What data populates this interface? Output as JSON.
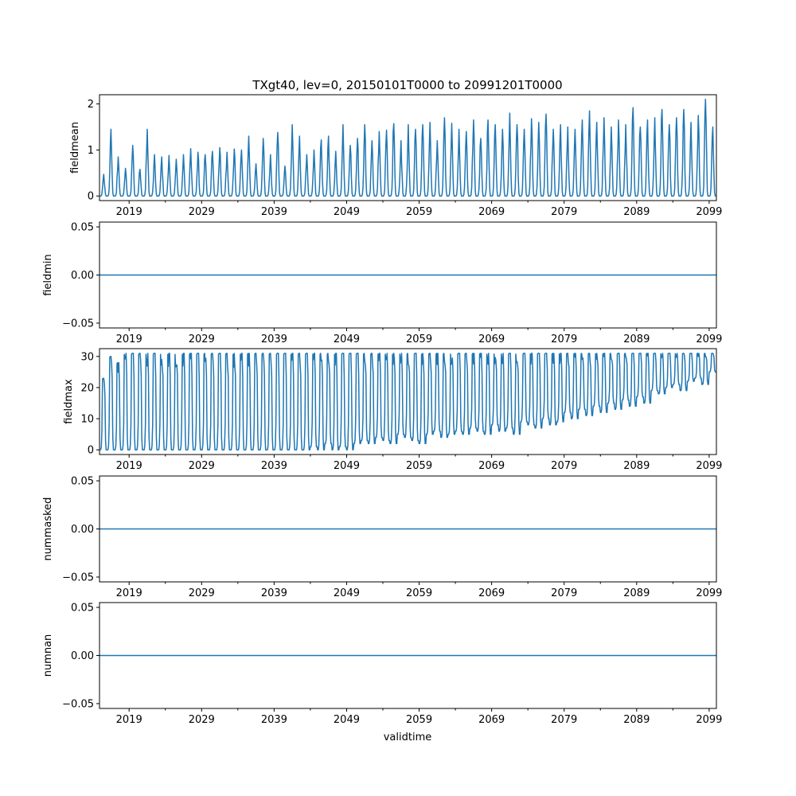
{
  "title": "TXgt40, lev=0, 20150101T0000 to 20991201T0000",
  "xlabel": "validtime",
  "colors": {
    "line": "#1f77b4",
    "axes": "#000000",
    "background": "#ffffff"
  },
  "x_ticks": [
    "2019",
    "2029",
    "2039",
    "2049",
    "2059",
    "2069",
    "2079",
    "2089",
    "2099"
  ],
  "x_range": [
    "2014-12-01",
    "2099-12-31"
  ],
  "chart_data": [
    {
      "type": "line",
      "name": "fieldmean",
      "ylabel": "fieldmean",
      "ylim": [
        -0.1,
        2.2
      ],
      "yticks": [
        "0",
        "1",
        "2"
      ],
      "ytick_values": [
        0,
        1,
        2
      ],
      "x_start": "2015-01",
      "x_end": "2099-12",
      "sampling": "monthly",
      "grid": false,
      "yearly_peaks": [
        0.47,
        1.45,
        0.85,
        0.6,
        1.1,
        0.58,
        1.45,
        0.9,
        0.85,
        0.88,
        0.8,
        0.9,
        1.03,
        0.95,
        0.9,
        0.97,
        1.05,
        0.95,
        1.02,
        1.0,
        1.3,
        0.7,
        1.25,
        0.9,
        1.38,
        0.65,
        1.55,
        1.3,
        0.9,
        1.0,
        1.22,
        1.3,
        0.97,
        1.55,
        1.1,
        1.25,
        1.55,
        1.2,
        1.4,
        1.43,
        1.57,
        1.2,
        1.55,
        1.45,
        1.55,
        1.6,
        1.2,
        1.7,
        1.58,
        1.45,
        1.4,
        1.65,
        1.25,
        1.65,
        1.55,
        1.45,
        1.8,
        1.55,
        1.45,
        1.68,
        1.6,
        1.78,
        1.45,
        1.55,
        1.5,
        1.45,
        1.65,
        1.85,
        1.6,
        1.7,
        1.5,
        1.65,
        1.55,
        1.92,
        1.5,
        1.65,
        1.7,
        1.88,
        1.55,
        1.7,
        1.88,
        1.6,
        1.75,
        2.1,
        1.5
      ]
    },
    {
      "type": "line",
      "name": "fieldmin",
      "ylabel": "fieldmin",
      "ylim": [
        -0.055,
        0.055
      ],
      "yticks": [
        "−0.05",
        "0.00",
        "0.05"
      ],
      "ytick_values": [
        -0.05,
        0,
        0.05
      ],
      "x_start": "2015-01",
      "x_end": "2099-12",
      "constant_value": 0,
      "grid": false
    },
    {
      "type": "line",
      "name": "fieldmax",
      "ylabel": "fieldmax",
      "ylim": [
        -1.5,
        32.5
      ],
      "yticks": [
        "0",
        "10",
        "20",
        "30"
      ],
      "ytick_values": [
        0,
        10,
        20,
        30
      ],
      "x_start": "2015-01",
      "x_end": "2099-12",
      "sampling": "monthly",
      "grid": false,
      "yearly_peaks": [
        23,
        30,
        28,
        31,
        31,
        31,
        31,
        31,
        31,
        31,
        31,
        31,
        31,
        31,
        31,
        31,
        31,
        31,
        31,
        31,
        31,
        31,
        31,
        31,
        31,
        31,
        31,
        31,
        31,
        31,
        31,
        31,
        31,
        31,
        31,
        31,
        31,
        31,
        31,
        31,
        31,
        31,
        31,
        31,
        31,
        31,
        31,
        31,
        31,
        31,
        31,
        31,
        31,
        31,
        31,
        31,
        31,
        31,
        31,
        31,
        31,
        31,
        31,
        31,
        31,
        31,
        31,
        31,
        31,
        31,
        31,
        31,
        31,
        31,
        31,
        31,
        31,
        31,
        31,
        31,
        31,
        31,
        31,
        31,
        31
      ],
      "yearly_minima": [
        0,
        0,
        0,
        0,
        0,
        0,
        0,
        0,
        0,
        0,
        0,
        0,
        0,
        0,
        0,
        0,
        0,
        0,
        0,
        0,
        0,
        0,
        0,
        0,
        0,
        0,
        0,
        0,
        0,
        1,
        0,
        2,
        0,
        1,
        0,
        2,
        3,
        2,
        4,
        3,
        2,
        5,
        4,
        3,
        2,
        5,
        6,
        4,
        5,
        6,
        5,
        7,
        6,
        5,
        8,
        6,
        7,
        5,
        9,
        8,
        7,
        10,
        8,
        9,
        12,
        10,
        13,
        11,
        14,
        12,
        15,
        13,
        16,
        14,
        17,
        15,
        19,
        18,
        20,
        21,
        19,
        22,
        23,
        21,
        25
      ]
    },
    {
      "type": "line",
      "name": "nummasked",
      "ylabel": "nummasked",
      "ylim": [
        -0.055,
        0.055
      ],
      "yticks": [
        "−0.05",
        "0.00",
        "0.05"
      ],
      "ytick_values": [
        -0.05,
        0,
        0.05
      ],
      "x_start": "2015-01",
      "x_end": "2099-12",
      "constant_value": 0,
      "grid": false
    },
    {
      "type": "line",
      "name": "numnan",
      "ylabel": "numnan",
      "ylim": [
        -0.055,
        0.055
      ],
      "yticks": [
        "−0.05",
        "0.00",
        "0.05"
      ],
      "ytick_values": [
        -0.05,
        0,
        0.05
      ],
      "x_start": "2015-01",
      "x_end": "2099-12",
      "constant_value": 0,
      "grid": false
    }
  ]
}
